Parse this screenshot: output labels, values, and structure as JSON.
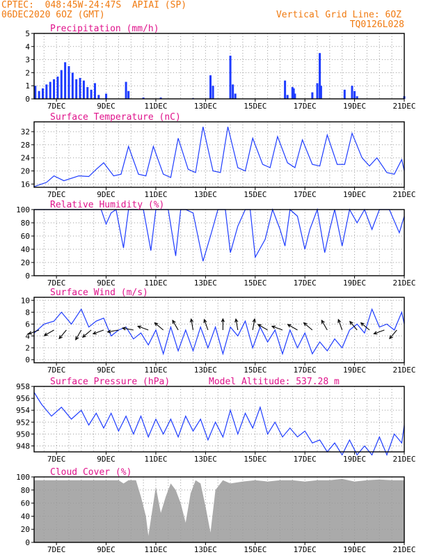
{
  "header": {
    "line1": "CPTEC:  048:45W-24:47S  APIAI (SP)",
    "line2": "06DEC2020 6OZ (GMT)",
    "grid_note": "Vertical Grid Line: 6OZ",
    "code": "TQ0126L028"
  },
  "colors": {
    "header": "#f07a10",
    "title": "#e0148c",
    "series": "#1e3cff",
    "wind_arrow": "#000000",
    "cloud_fill": "#aaaaaa",
    "grid": "#9a9a9a"
  },
  "x_axis": {
    "tick_labels": [
      "7DEC",
      "9DEC",
      "11DEC",
      "13DEC",
      "15DEC",
      "17DEC",
      "19DEC",
      "21DEC"
    ],
    "tick_days": [
      7,
      9,
      11,
      13,
      15,
      17,
      19,
      21
    ],
    "range_days": [
      6.1,
      21
    ]
  },
  "chart_data": [
    {
      "type": "bar",
      "title": "Precipitation (mm/h)",
      "ylim": [
        0,
        5
      ],
      "yticks": [
        "0",
        "1",
        "2",
        "3",
        "4",
        "5"
      ],
      "grid": true,
      "x_days": [
        6.15,
        6.3,
        6.45,
        6.6,
        6.75,
        6.9,
        7.05,
        7.2,
        7.35,
        7.5,
        7.65,
        7.8,
        7.95,
        8.1,
        8.25,
        8.4,
        8.55,
        8.7,
        9.0,
        9.8,
        9.9,
        10.5,
        11.2,
        12.5,
        13.2,
        13.3,
        14.0,
        14.1,
        14.2,
        16.2,
        16.3,
        16.5,
        16.55,
        16.6,
        17.3,
        17.5,
        17.6,
        17.65,
        18.6,
        18.9,
        19.0,
        19.1,
        21.0
      ],
      "values": [
        1.0,
        0.6,
        0.8,
        1.1,
        1.3,
        1.5,
        1.7,
        2.2,
        2.8,
        2.5,
        2.0,
        1.5,
        1.6,
        1.4,
        0.9,
        0.7,
        1.2,
        0.3,
        0.4,
        1.3,
        0.6,
        0.1,
        0.1,
        0.05,
        1.8,
        1.0,
        3.3,
        1.1,
        0.4,
        1.4,
        0.3,
        0.9,
        0.8,
        0.4,
        0.5,
        1.2,
        3.5,
        1.0,
        0.7,
        1.0,
        0.6,
        0.2,
        0.2
      ]
    },
    {
      "type": "line",
      "title": "Surface Temperature (nC)",
      "ylim": [
        15,
        35
      ],
      "yticks": [
        "16",
        "20",
        "24",
        "28",
        "32"
      ],
      "grid": true,
      "x_days": [
        6.1,
        6.6,
        6.9,
        7.3,
        7.9,
        8.3,
        8.6,
        8.9,
        9.3,
        9.6,
        9.9,
        10.3,
        10.6,
        10.9,
        11.3,
        11.6,
        11.9,
        12.3,
        12.6,
        12.9,
        13.3,
        13.6,
        13.9,
        14.3,
        14.6,
        14.9,
        15.3,
        15.6,
        15.9,
        16.3,
        16.6,
        16.9,
        17.3,
        17.6,
        17.9,
        18.3,
        18.6,
        18.9,
        19.3,
        19.6,
        19.9,
        20.3,
        20.6,
        20.9,
        21.0
      ],
      "values": [
        15.2,
        16.5,
        18.5,
        17.0,
        18.5,
        18.3,
        20.5,
        22.5,
        18.5,
        19.0,
        27.5,
        19.0,
        18.5,
        27.5,
        19.0,
        18.0,
        30.0,
        20.5,
        19.5,
        33.5,
        20.0,
        19.5,
        33.5,
        21.0,
        20.0,
        30.0,
        22.0,
        21.0,
        30.5,
        22.5,
        21.0,
        29.5,
        22.0,
        21.5,
        31.0,
        22.0,
        22.0,
        31.5,
        24.0,
        21.5,
        24.0,
        19.5,
        19.0,
        23.5,
        20.0
      ]
    },
    {
      "type": "line",
      "title": "Relative Humidity (%)",
      "ylim": [
        0,
        100
      ],
      "yticks": [
        "0",
        "20",
        "40",
        "60",
        "80",
        "100"
      ],
      "grid": true,
      "x_days": [
        6.1,
        7.0,
        7.8,
        8.4,
        8.8,
        9.0,
        9.2,
        9.4,
        9.7,
        9.9,
        10.2,
        10.5,
        10.8,
        11.0,
        11.2,
        11.5,
        11.8,
        12.0,
        12.2,
        12.5,
        12.9,
        13.2,
        13.5,
        13.8,
        14.0,
        14.3,
        14.6,
        14.8,
        15.0,
        15.4,
        15.7,
        16.0,
        16.2,
        16.4,
        16.7,
        17.0,
        17.2,
        17.5,
        17.8,
        18.0,
        18.2,
        18.5,
        18.8,
        19.1,
        19.4,
        19.7,
        20.0,
        20.4,
        20.8,
        21.0
      ],
      "values": [
        100,
        100,
        100,
        100,
        100,
        78,
        95,
        100,
        42,
        100,
        100,
        100,
        38,
        100,
        100,
        100,
        30,
        100,
        100,
        95,
        22,
        60,
        100,
        100,
        35,
        75,
        100,
        100,
        28,
        55,
        100,
        70,
        45,
        100,
        90,
        40,
        70,
        100,
        35,
        70,
        100,
        45,
        100,
        80,
        100,
        70,
        100,
        100,
        65,
        90
      ]
    },
    {
      "type": "line",
      "title": "Surface Wind (m/s)",
      "ylim": [
        -0.5,
        10.5
      ],
      "yticks": [
        "0",
        "2",
        "4",
        "6",
        "8",
        "10"
      ],
      "grid": true,
      "x_days": [
        6.1,
        6.5,
        6.9,
        7.2,
        7.6,
        8.0,
        8.3,
        8.6,
        8.9,
        9.2,
        9.5,
        9.8,
        10.1,
        10.4,
        10.7,
        11.0,
        11.3,
        11.6,
        11.9,
        12.2,
        12.5,
        12.8,
        13.1,
        13.4,
        13.7,
        14.0,
        14.3,
        14.6,
        14.9,
        15.2,
        15.5,
        15.8,
        16.1,
        16.4,
        16.7,
        17.0,
        17.3,
        17.6,
        17.9,
        18.2,
        18.5,
        18.8,
        19.1,
        19.4,
        19.7,
        20.0,
        20.3,
        20.6,
        20.9,
        21.0
      ],
      "values": [
        4.5,
        6.0,
        6.5,
        8.0,
        6.0,
        8.5,
        5.5,
        6.5,
        7.0,
        4.0,
        5.0,
        5.5,
        3.5,
        4.5,
        2.5,
        5.0,
        1.0,
        5.5,
        1.5,
        5.0,
        1.5,
        5.5,
        2.0,
        5.5,
        1.0,
        5.5,
        4.0,
        6.5,
        2.0,
        5.5,
        3.0,
        5.0,
        1.0,
        5.0,
        2.0,
        4.5,
        1.0,
        3.0,
        1.5,
        3.5,
        2.0,
        5.0,
        6.0,
        4.5,
        8.5,
        5.5,
        6.0,
        5.0,
        8.0,
        6.0
      ],
      "arrow_days": [
        6.3,
        6.9,
        7.4,
        8.0,
        8.4,
        8.9,
        9.5,
        10.1,
        10.7,
        11.3,
        11.9,
        12.5,
        13.1,
        13.7,
        14.3,
        14.9,
        15.5,
        16.1,
        16.7,
        17.3,
        17.9,
        18.5,
        19.1,
        19.6,
        20.2,
        20.7
      ],
      "arrow_dirs_deg": [
        200,
        210,
        230,
        240,
        220,
        200,
        190,
        170,
        160,
        140,
        120,
        100,
        110,
        90,
        100,
        80,
        150,
        160,
        150,
        140,
        120,
        110,
        130,
        140,
        200,
        230
      ]
    },
    {
      "type": "line",
      "title": "Surface Pressure (hPa)",
      "annotation": "Model Altitude: 537.28 m",
      "ylim": [
        947,
        958
      ],
      "yticks": [
        "948",
        "950",
        "952",
        "954",
        "956",
        "958"
      ],
      "grid": true,
      "x_days": [
        6.1,
        6.4,
        6.8,
        7.2,
        7.6,
        8.0,
        8.3,
        8.6,
        8.9,
        9.2,
        9.5,
        9.8,
        10.1,
        10.4,
        10.7,
        11.0,
        11.3,
        11.6,
        11.9,
        12.2,
        12.5,
        12.8,
        13.1,
        13.4,
        13.7,
        14.0,
        14.3,
        14.6,
        14.9,
        15.2,
        15.5,
        15.8,
        16.1,
        16.4,
        16.7,
        17.0,
        17.3,
        17.6,
        17.9,
        18.2,
        18.5,
        18.8,
        19.1,
        19.4,
        19.7,
        20.0,
        20.3,
        20.6,
        20.9,
        21.0
      ],
      "values": [
        957.0,
        955.0,
        953.0,
        954.5,
        952.5,
        954.0,
        951.5,
        953.5,
        951.0,
        953.5,
        950.5,
        953.0,
        950.0,
        953.0,
        949.5,
        952.5,
        950.0,
        952.5,
        949.5,
        953.0,
        950.5,
        952.5,
        949.0,
        952.0,
        949.5,
        954.0,
        950.0,
        953.5,
        951.0,
        954.5,
        950.0,
        952.0,
        949.5,
        951.0,
        949.5,
        950.5,
        948.5,
        949.0,
        947.0,
        948.5,
        946.5,
        949.0,
        946.5,
        948.0,
        946.5,
        949.5,
        946.5,
        950.0,
        948.5,
        951.5
      ]
    },
    {
      "type": "area",
      "title": "Cloud Cover (%)",
      "ylim": [
        0,
        100
      ],
      "yticks": [
        "0",
        "20",
        "40",
        "60",
        "80",
        "100"
      ],
      "grid": true,
      "x_days": [
        6.1,
        7.0,
        8.0,
        9.0,
        9.5,
        9.7,
        9.9,
        10.2,
        10.4,
        10.6,
        10.7,
        10.9,
        11.0,
        11.2,
        11.4,
        11.6,
        11.8,
        12.0,
        12.2,
        12.4,
        12.6,
        12.8,
        13.0,
        13.2,
        13.4,
        13.7,
        14.0,
        14.5,
        15.0,
        15.5,
        16.0,
        16.5,
        17.0,
        17.5,
        18.0,
        18.5,
        19.0,
        19.5,
        20.0,
        20.5,
        21.0
      ],
      "values": [
        95,
        95,
        95,
        95,
        95,
        90,
        95,
        95,
        70,
        40,
        10,
        60,
        85,
        45,
        70,
        90,
        80,
        60,
        30,
        75,
        95,
        90,
        55,
        15,
        80,
        95,
        90,
        93,
        95,
        93,
        95,
        95,
        93,
        95,
        95,
        97,
        93,
        95,
        96,
        95,
        95
      ]
    }
  ]
}
